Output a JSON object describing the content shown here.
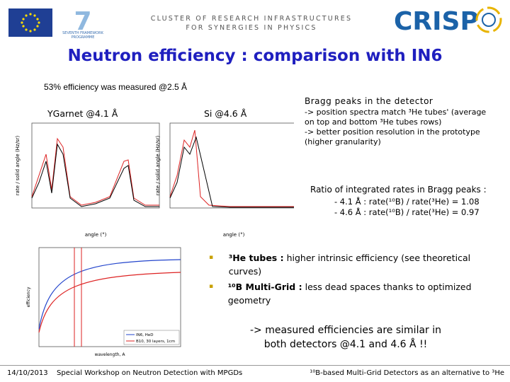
{
  "header": {
    "eu_programme": "SEVENTH FRAMEWORK PROGRAMME",
    "banner_line1": "CLUSTER OF RESEARCH INFRASTRUCTURES",
    "banner_line2": "FOR SYNERGIES IN PHYSICS",
    "logo": "CRISP"
  },
  "title": "Neutron efficiency : comparison with IN6",
  "measured": "53% efficiency was measured @2.5 Å",
  "plots": {
    "left_label": "YGarnet @4.1 Å",
    "right_label": "Si @4.6 Å",
    "x_label": "angle (°)",
    "y_label": "rate / solid angle (Hz/sr)",
    "efficiency_y_label": "efficiency",
    "efficiency_x_label": "wavelength, A",
    "legend": [
      "IN6, HeD",
      "B10, 30 layers, 1cm"
    ]
  },
  "bragg": {
    "heading": "Bragg peaks in the detector",
    "lines": [
      "-> position spectra match ³He tubes' (average",
      "on top and bottom ³He tubes rows)",
      "->  better position resolution in the prototype",
      "(higher granularity)"
    ]
  },
  "ratio": {
    "heading": "Ratio of integrated rates in Bragg peaks :",
    "lines": [
      "- 4.1 Å : rate(¹⁰B) / rate(³He) = 1.08",
      "- 4.6 Å : rate(¹⁰B) / rate(³He) = 0.97"
    ]
  },
  "bullets": [
    {
      "lead": "³He tubes :",
      "text": "higher intrinsic efficiency (see theoretical curves)"
    },
    {
      "lead": "¹⁰B Multi-Grid :",
      "text": "less dead spaces thanks to optimized geometry"
    }
  ],
  "conclusion": [
    "-> measured efficiencies are similar in",
    "both detectors @4.1 and 4.6 Å !!"
  ],
  "footer": {
    "date": "14/10/2013",
    "event": "Special Workshop on Neutron Detection with MPGDs",
    "right": "¹⁰B-based Multi-Grid Detectors as an alternative to ³He"
  }
}
